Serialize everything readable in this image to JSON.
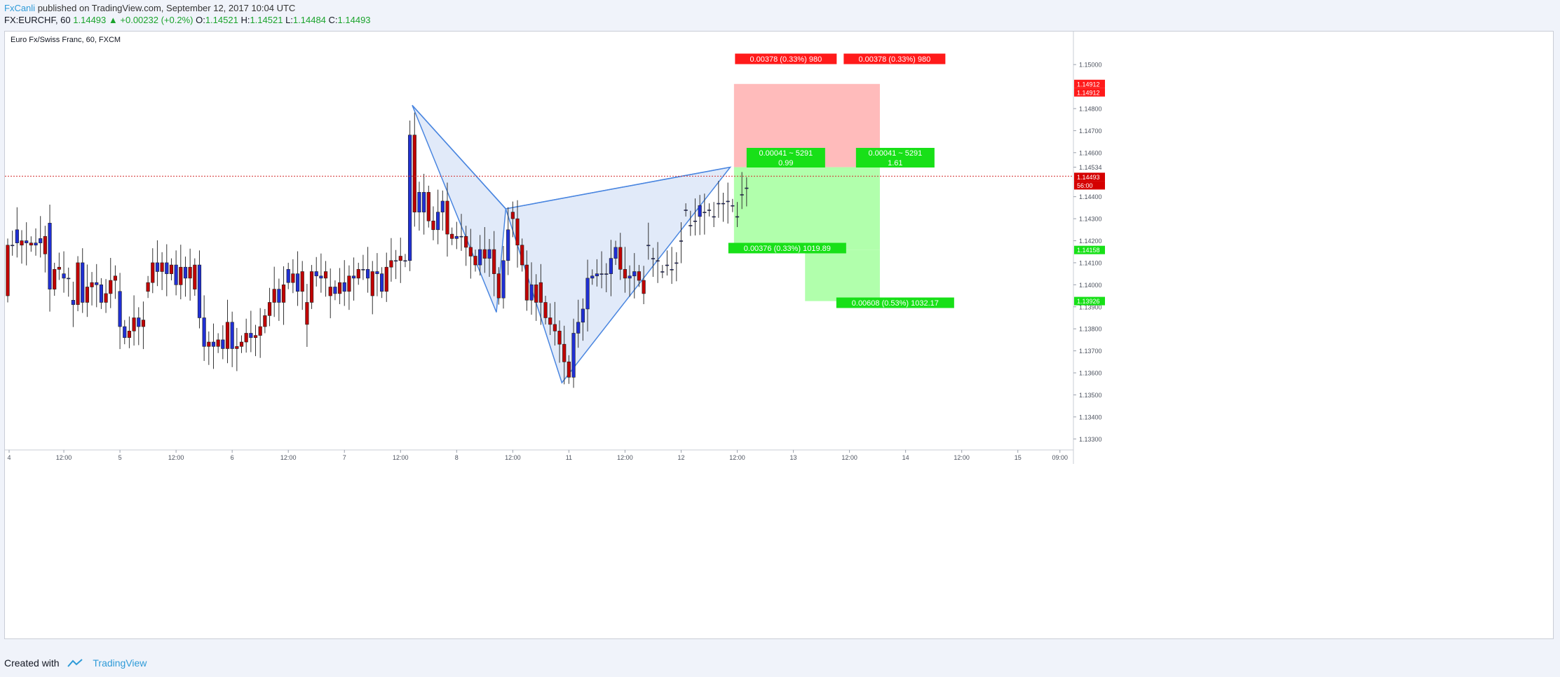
{
  "header": {
    "author": "FxCanli",
    "published_text": "published on TradingView.com, September 12, 2017 10:04 UTC",
    "symbol": "FX:EURCHF, 60",
    "last": "1.14493",
    "change_arrow": "▲",
    "change": "+0.00232 (+0.2%)",
    "o_label": "O:",
    "o_value": "1.14521",
    "h_label": "H:",
    "h_value": "1.14521",
    "l_label": "L:",
    "l_value": "1.14484",
    "c_label": "C:",
    "c_value": "1.14493"
  },
  "chart_title": "Euro Fx/Swiss Franc, 60, FXCM",
  "footer": {
    "created_with": "Created with",
    "brand": "TradingView"
  },
  "colors": {
    "up": "#1f2fd4",
    "down": "#c00000",
    "pattern_fill": "#dce6f8",
    "pattern_line": "#4a86e0",
    "stop_zone": "#ffb7b7",
    "target_zone": "#b1ffac",
    "label_red": "#ff1a1a",
    "label_green": "#18e018",
    "price_line": "#d32f2f",
    "accent": "#2f9bd8"
  },
  "chart_data": {
    "type": "candlestick",
    "instrument": "EURCHF",
    "interval": "60",
    "ylim": [
      1.1325,
      1.1515
    ],
    "y_ticks": [
      "1.15000",
      "1.14800",
      "1.14700",
      "1.14600",
      "1.14534",
      "1.14400",
      "1.14300",
      "1.14200",
      "1.14100",
      "1.14000",
      "1.13900",
      "1.13800",
      "1.13700",
      "1.13600",
      "1.13500",
      "1.13400",
      "1.13300"
    ],
    "x_ticks": [
      {
        "label": "4",
        "pos": 0.3
      },
      {
        "label": "12:00",
        "pos": 12
      },
      {
        "label": "5",
        "pos": 24
      },
      {
        "label": "12:00",
        "pos": 36
      },
      {
        "label": "6",
        "pos": 48
      },
      {
        "label": "12:00",
        "pos": 60
      },
      {
        "label": "7",
        "pos": 72
      },
      {
        "label": "12:00",
        "pos": 84
      },
      {
        "label": "8",
        "pos": 96
      },
      {
        "label": "12:00",
        "pos": 108
      },
      {
        "label": "11",
        "pos": 120
      },
      {
        "label": "12:00",
        "pos": 132
      },
      {
        "label": "12",
        "pos": 144
      },
      {
        "label": "12:00",
        "pos": 156
      },
      {
        "label": "13",
        "pos": 168
      },
      {
        "label": "12:00",
        "pos": 180
      },
      {
        "label": "14",
        "pos": 192
      },
      {
        "label": "12:00",
        "pos": 204
      },
      {
        "label": "15",
        "pos": 216
      },
      {
        "label": "09:00",
        "pos": 225
      }
    ],
    "closes": [
      1.1395,
      1.1418,
      1.1425,
      1.1418,
      1.142,
      1.1418,
      1.1419,
      1.1421,
      1.1414,
      1.1428,
      1.1398,
      1.1407,
      1.1405,
      1.1403,
      1.1393,
      1.1391,
      1.141,
      1.1392,
      1.1399,
      1.1401,
      1.14,
      1.1392,
      1.1396,
      1.1402,
      1.1397,
      1.1381,
      1.1376,
      1.1379,
      1.1385,
      1.1381,
      1.1397,
      1.1401,
      1.141,
      1.1406,
      1.141,
      1.1405,
      1.1409,
      1.14,
      1.1408,
      1.1403,
      1.1398,
      1.1409,
      1.1385,
      1.1372,
      1.1374,
      1.1372,
      1.1375,
      1.1371,
      1.1383,
      1.1371,
      1.1372,
      1.1374,
      1.1378,
      1.1376,
      1.1377,
      1.1381,
      1.1386,
      1.1392,
      1.1398,
      1.1392,
      1.1407,
      1.1401,
      1.1405,
      1.1397,
      1.1382,
      1.1392,
      1.1406,
      1.1404,
      1.1403,
      1.1395,
      1.1399,
      1.1396,
      1.1401,
      1.1397,
      1.1404,
      1.1403,
      1.1407,
      1.1407,
      1.1395,
      1.1406,
      1.1405,
      1.1397,
      1.1408,
      1.1411,
      1.1411,
      1.1411,
      1.1468,
      1.1433,
      1.1442,
      1.1442,
      1.1429,
      1.1425,
      1.1433,
      1.1438,
      1.1423,
      1.1421,
      1.1422,
      1.1422,
      1.1417,
      1.1413,
      1.1409,
      1.1416,
      1.1412,
      1.1416,
      1.1405,
      1.1394,
      1.1411,
      1.1425,
      1.143,
      1.1418,
      1.1409,
      1.1393,
      1.14,
      1.1392,
      1.1392,
      1.1385,
      1.1382,
      1.1379,
      1.1373,
      1.1365,
      1.1358,
      1.1378,
      1.1383,
      1.1389,
      1.1403,
      1.1404,
      1.1405,
      1.1405,
      1.1405,
      1.1412,
      1.1417,
      1.1407,
      1.1403,
      1.1404,
      1.1406,
      1.1402,
      1.1396,
      1.1418,
      1.1412,
      1.1411,
      1.1406,
      1.1409,
      1.1407,
      1.141,
      1.142,
      1.1434,
      1.1427,
      1.1429,
      1.1436,
      1.1433,
      1.1434,
      1.1431,
      1.1437,
      1.1437,
      1.1438,
      1.1436,
      1.1431,
      1.1441,
      1.1444,
      1.1449
    ],
    "opens": [
      1.1418,
      1.1418,
      1.1419,
      1.142,
      1.1419,
      1.1419,
      1.1418,
      1.1419,
      1.1422,
      1.1398,
      1.1407,
      1.1408,
      1.1403,
      1.1403,
      1.1391,
      1.141,
      1.1392,
      1.1399,
      1.1401,
      1.14,
      1.1392,
      1.1396,
      1.1402,
      1.1404,
      1.1381,
      1.1376,
      1.1379,
      1.1385,
      1.1381,
      1.1384,
      1.1401,
      1.141,
      1.1406,
      1.141,
      1.1405,
      1.1409,
      1.14,
      1.1408,
      1.1403,
      1.1408,
      1.1409,
      1.1385,
      1.1372,
      1.1374,
      1.1372,
      1.1375,
      1.1371,
      1.1383,
      1.1371,
      1.1372,
      1.1374,
      1.1378,
      1.1376,
      1.1377,
      1.1381,
      1.1386,
      1.1392,
      1.1398,
      1.1392,
      1.14,
      1.1401,
      1.1405,
      1.1397,
      1.1406,
      1.1392,
      1.1406,
      1.1404,
      1.1403,
      1.1406,
      1.1399,
      1.1396,
      1.1401,
      1.1397,
      1.1404,
      1.1403,
      1.1407,
      1.1407,
      1.1403,
      1.1406,
      1.1405,
      1.1397,
      1.1408,
      1.1411,
      1.1411,
      1.1413,
      1.1411,
      1.1411,
      1.1468,
      1.1433,
      1.1433,
      1.1442,
      1.1429,
      1.1425,
      1.1433,
      1.1438,
      1.1423,
      1.1421,
      1.1422,
      1.1422,
      1.1417,
      1.1413,
      1.1409,
      1.1416,
      1.1412,
      1.1416,
      1.1405,
      1.1394,
      1.1411,
      1.1433,
      1.143,
      1.1418,
      1.1409,
      1.1393,
      1.14,
      1.1401,
      1.1392,
      1.1385,
      1.1382,
      1.1379,
      1.1373,
      1.1365,
      1.1358,
      1.1378,
      1.1383,
      1.1389,
      1.1403,
      1.1404,
      1.1405,
      1.1405,
      1.1405,
      1.1412,
      1.1417,
      1.1407,
      1.1403,
      1.1404,
      1.1406,
      1.1402,
      1.1418,
      1.1412,
      1.1411,
      1.1406,
      1.1409,
      1.1407,
      1.141,
      1.142,
      1.1434,
      1.1427,
      1.1429,
      1.1431,
      1.1433,
      1.1434,
      1.1431,
      1.1437,
      1.1437,
      1.1438,
      1.1436,
      1.1431,
      1.1441,
      1.1444
    ]
  },
  "annotations": {
    "pattern_points": [
      {
        "pos": 86.5,
        "price": 1.14815
      },
      {
        "pos": 104.5,
        "price": 1.13875
      },
      {
        "pos": 106.5,
        "price": 1.14345
      },
      {
        "pos": 118.5,
        "price": 1.13555
      },
      {
        "pos": 154.5,
        "price": 1.14534
      }
    ],
    "price_line": 1.14493,
    "stop_level": 1.14912,
    "entry_level": 1.14534,
    "target1_level": 1.14158,
    "target2_level": 1.13926,
    "labels": {
      "stop_left": "0.00378 (0.33%) 980",
      "stop_right": "0.00378 (0.33%) 980",
      "entry_left_1": "0.00041 ~ 5291",
      "entry_left_2": "0.99",
      "entry_right_1": "0.00041 ~ 5291",
      "entry_right_2": "1.61",
      "target1": "0.00376 (0.33%) 1019.89",
      "target2": "0.00608 (0.53%) 1032.17"
    },
    "axis_markers": {
      "stop": "1.14912",
      "stop2": "1.14912",
      "price": "1.14493",
      "countdown": "56:00",
      "target1": "1.14158",
      "target2": "1.13926"
    }
  }
}
